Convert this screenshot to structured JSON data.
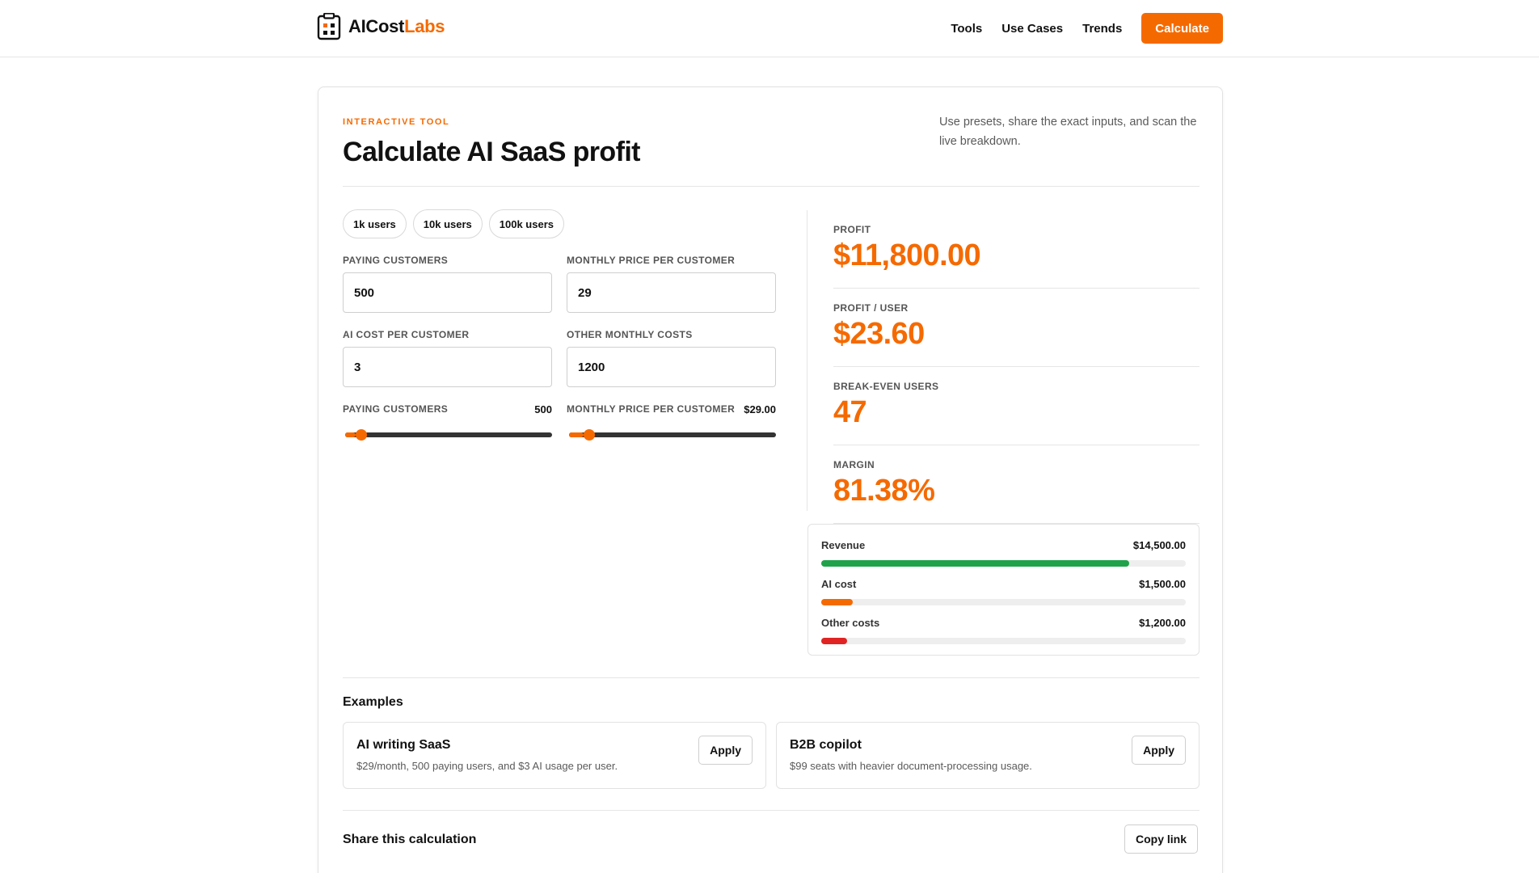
{
  "header": {
    "logo_main": "AICost",
    "logo_accent": "Labs",
    "nav": [
      "Tools",
      "Use Cases",
      "Trends"
    ],
    "cta": "Calculate"
  },
  "tool": {
    "eyebrow": "INTERACTIVE TOOL",
    "title": "Calculate AI SaaS profit",
    "description": "Use presets, share the exact inputs, and scan the live breakdown.",
    "presets": [
      "1k users",
      "10k users",
      "100k users"
    ],
    "fields": {
      "paying_customers": {
        "label": "PAYING CUSTOMERS",
        "value": "500"
      },
      "monthly_price": {
        "label": "MONTHLY PRICE PER CUSTOMER",
        "value": "29"
      },
      "ai_cost": {
        "label": "AI COST PER CUSTOMER",
        "value": "3"
      },
      "other_costs": {
        "label": "OTHER MONTHLY COSTS",
        "value": "1200"
      }
    },
    "sliders": {
      "customers": {
        "label": "PAYING CUSTOMERS",
        "value": "500",
        "fraction": 0.05
      },
      "price": {
        "label": "MONTHLY PRICE PER CUSTOMER",
        "value": "$29.00",
        "fraction": 0.07
      }
    }
  },
  "results": {
    "profit": {
      "label": "PROFIT",
      "value": "$11,800.00"
    },
    "profit_per_user": {
      "label": "PROFIT / USER",
      "value": "$23.60"
    },
    "break_even": {
      "label": "BREAK-EVEN USERS",
      "value": "47"
    },
    "margin": {
      "label": "MARGIN",
      "value": "81.38%"
    }
  },
  "breakdown": [
    {
      "label": "Revenue",
      "value": "$14,500.00",
      "fraction": 0.845,
      "color": "#1fa24a"
    },
    {
      "label": "AI cost",
      "value": "$1,500.00",
      "fraction": 0.087,
      "color": "#f56a00"
    },
    {
      "label": "Other costs",
      "value": "$1,200.00",
      "fraction": 0.07,
      "color": "#e02424"
    }
  ],
  "examples": {
    "title": "Examples",
    "items": [
      {
        "title": "AI writing SaaS",
        "desc": "$29/month, 500 paying users, and $3 AI usage per user.",
        "button": "Apply"
      },
      {
        "title": "B2B copilot",
        "desc": "$99 seats with heavier document-processing usage.",
        "button": "Apply"
      }
    ]
  },
  "share": {
    "title": "Share this calculation",
    "button": "Copy link"
  },
  "colors": {
    "accent": "#f56a00",
    "revenue": "#1fa24a",
    "other": "#e02424"
  }
}
